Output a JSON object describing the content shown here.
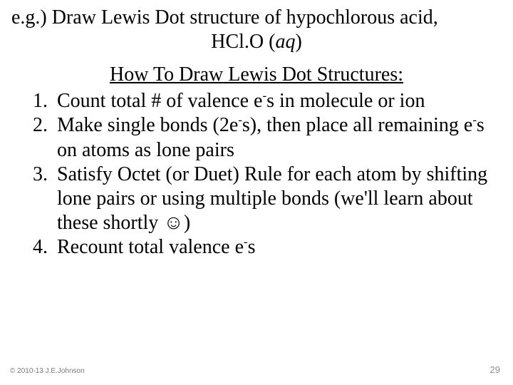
{
  "title": {
    "line1": "e.g.) Draw Lewis Dot structure of hypochlorous acid,",
    "formula_prefix": "HCl.O (",
    "formula_italic": "aq",
    "formula_suffix": ")"
  },
  "subtitle": "How To Draw Lewis Dot Structures:",
  "items": [
    {
      "p1": "Count total # of valence e",
      "sup1": "-",
      "p2": "s in molecule or ion"
    },
    {
      "p1": "Make single bonds (2e",
      "sup1": "-",
      "p2": "s), then place all remaining e",
      "sup2": "-",
      "p3": "s on atoms as lone pairs"
    },
    {
      "p1": "Satisfy Octet (or Duet) Rule for each atom by shifting lone pairs or using multiple bonds (we'll learn about these shortly ☺)"
    },
    {
      "p1": "Recount total valence e",
      "sup1": "-",
      "p2": "s"
    }
  ],
  "footer": {
    "copyright": "© 2010-13 J.E.Johnson",
    "page": "29"
  },
  "colors": {
    "text": "#000000",
    "background": "#ffffff",
    "footer": "#8c8c8c"
  }
}
